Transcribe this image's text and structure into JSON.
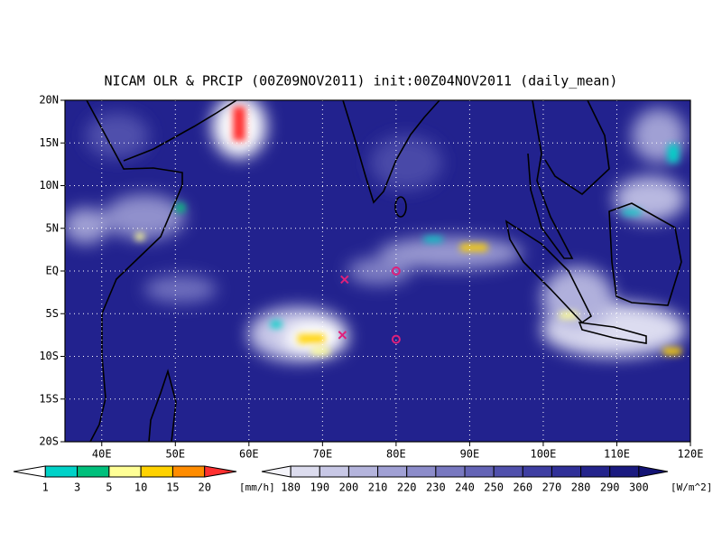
{
  "title": "NICAM OLR & PRCIP (00Z09NOV2011) init:00Z04NOV2011 (daily_mean)",
  "map": {
    "xlim": [
      35,
      120
    ],
    "ylim": [
      -20,
      20
    ],
    "xticks": [
      {
        "value": 40,
        "label": "40E"
      },
      {
        "value": 50,
        "label": "50E"
      },
      {
        "value": 60,
        "label": "60E"
      },
      {
        "value": 70,
        "label": "70E"
      },
      {
        "value": 80,
        "label": "80E"
      },
      {
        "value": 90,
        "label": "90E"
      },
      {
        "value": 100,
        "label": "100E"
      },
      {
        "value": 110,
        "label": "110E"
      },
      {
        "value": 120,
        "label": "120E"
      }
    ],
    "yticks": [
      {
        "value": 20,
        "label": "20N"
      },
      {
        "value": 15,
        "label": "15N"
      },
      {
        "value": 10,
        "label": "10N"
      },
      {
        "value": 5,
        "label": "5N"
      },
      {
        "value": 0,
        "label": "EQ"
      },
      {
        "value": -5,
        "label": "5S"
      },
      {
        "value": -10,
        "label": "10S"
      },
      {
        "value": -15,
        "label": "15S"
      },
      {
        "value": -20,
        "label": "20S"
      }
    ],
    "markers": [
      {
        "symbol": "x",
        "lon": 73,
        "lat": -1,
        "color": "#e0207a"
      },
      {
        "symbol": "o",
        "lon": 80,
        "lat": 0,
        "color": "#e0207a"
      },
      {
        "symbol": "x",
        "lon": 72.7,
        "lat": -7.5,
        "color": "#e0207a"
      },
      {
        "symbol": "o",
        "lon": 80,
        "lat": -8,
        "color": "#e0207a"
      }
    ]
  },
  "colorbars": [
    {
      "levels": [
        1,
        3,
        5,
        10,
        15,
        20
      ],
      "colors": [
        "#ffffff",
        "#00d2c8",
        "#00c07c",
        "#ffff96",
        "#ffd200",
        "#ff8c00",
        "#ff3030"
      ],
      "unit": "[mm/h]"
    },
    {
      "levels": [
        180,
        190,
        200,
        210,
        220,
        230,
        240,
        250,
        260,
        270,
        280,
        290,
        300
      ],
      "colors": [
        "#f4f4fa",
        "#dcdcee",
        "#c8c8e6",
        "#b4b4dc",
        "#a0a0d4",
        "#8c8cca",
        "#7878c0",
        "#6464b6",
        "#5050ac",
        "#3e3ea2",
        "#303098",
        "#24248c",
        "#1a1a80",
        "#121274"
      ],
      "unit": "[W/m^2]"
    }
  ]
}
